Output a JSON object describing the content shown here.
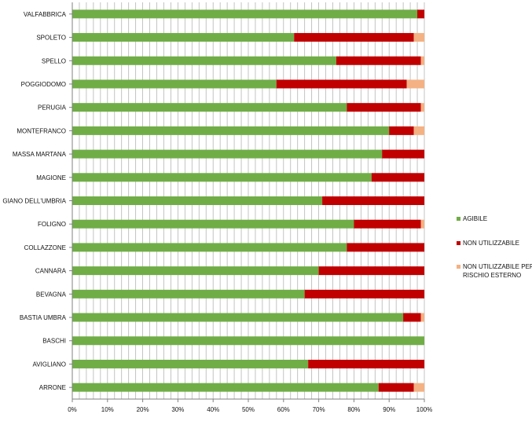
{
  "chart_data": {
    "type": "bar",
    "orientation": "horizontal",
    "stacked": "percent",
    "categories": [
      "VALFABBRICA",
      "SPOLETO",
      "SPELLO",
      "POGGIODOMO",
      "PERUGIA",
      "MONTEFRANCO",
      "MASSA MARTANA",
      "MAGIONE",
      "GIANO DELL'UMBRIA",
      "FOLIGNO",
      "COLLAZZONE",
      "CANNARA",
      "BEVAGNA",
      "BASTIA UMBRA",
      "BASCHI",
      "AVIGLIANO",
      "ARRONE"
    ],
    "series": [
      {
        "name": "AGIBILE",
        "color": "#70AD47",
        "values": [
          0.98,
          0.63,
          0.75,
          0.58,
          0.78,
          0.9,
          0.88,
          0.85,
          0.71,
          0.8,
          0.78,
          0.7,
          0.66,
          0.94,
          1.0,
          0.67,
          0.87
        ]
      },
      {
        "name": "NON UTILIZZABILE",
        "color": "#C00000",
        "values": [
          0.02,
          0.34,
          0.24,
          0.37,
          0.21,
          0.07,
          0.12,
          0.15,
          0.29,
          0.19,
          0.22,
          0.3,
          0.34,
          0.05,
          0.0,
          0.33,
          0.1
        ]
      },
      {
        "name": "NON UTILIZZABILE PER RISCHIO ESTERNO",
        "color": "#F4B183",
        "values": [
          0.0,
          0.03,
          0.01,
          0.05,
          0.01,
          0.03,
          0.0,
          0.0,
          0.0,
          0.01,
          0.0,
          0.0,
          0.0,
          0.01,
          0.0,
          0.0,
          0.03
        ]
      }
    ],
    "xlim": [
      0,
      1
    ],
    "x_ticks": [
      "0%",
      "10%",
      "20%",
      "30%",
      "40%",
      "50%",
      "60%",
      "70%",
      "80%",
      "90%",
      "100%"
    ],
    "grid": "vertical-minor",
    "legend": "right",
    "title": "",
    "xlabel": "",
    "ylabel": ""
  }
}
